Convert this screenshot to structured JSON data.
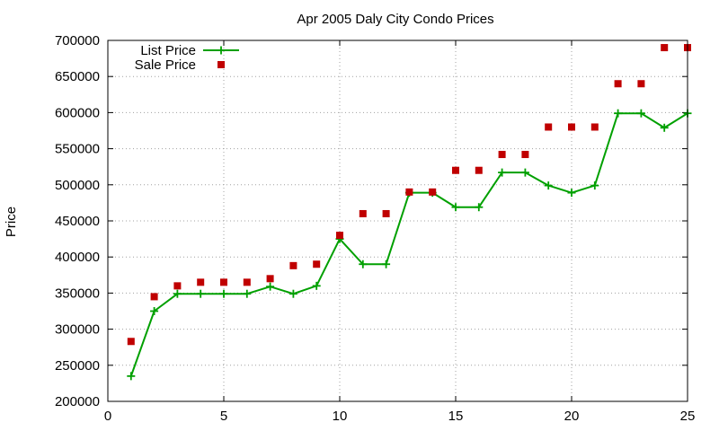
{
  "chart_data": {
    "type": "line",
    "title": "Apr 2005 Daly City Condo Prices",
    "xlabel": "",
    "ylabel": "Price",
    "xlim": [
      0,
      25
    ],
    "ylim": [
      200000,
      700000
    ],
    "xticks": [
      0,
      5,
      10,
      15,
      20,
      25
    ],
    "yticks": [
      200000,
      250000,
      300000,
      350000,
      400000,
      450000,
      500000,
      550000,
      600000,
      650000,
      700000
    ],
    "grid": true,
    "legend_position": "top-left",
    "series": [
      {
        "name": "List Price",
        "kind": "line",
        "marker": "plus",
        "color": "#00a000",
        "x": [
          1,
          2,
          3,
          4,
          5,
          6,
          7,
          8,
          9,
          10,
          11,
          12,
          13,
          14,
          15,
          16,
          17,
          18,
          19,
          20,
          21,
          22,
          23,
          24,
          25
        ],
        "y": [
          235000,
          325000,
          349000,
          349000,
          349000,
          349000,
          359000,
          349000,
          360000,
          425000,
          390000,
          390000,
          489000,
          489000,
          469000,
          469000,
          517000,
          517000,
          499000,
          489000,
          499000,
          599000,
          599000,
          579000,
          599000
        ]
      },
      {
        "name": "Sale Price",
        "kind": "points",
        "marker": "square",
        "color": "#c00000",
        "x": [
          1,
          2,
          3,
          4,
          5,
          6,
          7,
          8,
          9,
          10,
          11,
          12,
          13,
          14,
          15,
          16,
          17,
          18,
          19,
          20,
          21,
          22,
          23,
          24,
          25
        ],
        "y": [
          283000,
          345000,
          360000,
          365000,
          365000,
          365000,
          370000,
          388000,
          390000,
          430000,
          460000,
          460000,
          490000,
          490000,
          520000,
          520000,
          542000,
          542000,
          580000,
          580000,
          580000,
          640000,
          640000,
          690000,
          690000
        ]
      }
    ]
  }
}
